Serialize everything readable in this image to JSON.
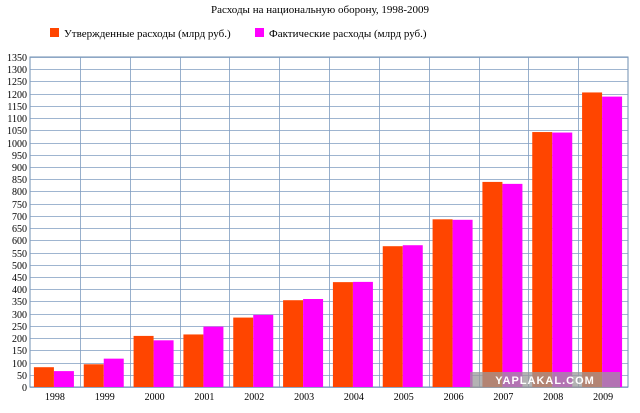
{
  "chart_data": {
    "type": "bar",
    "title": "Расходы на национальную оборону, 1998-2009",
    "categories": [
      "1998",
      "1999",
      "2000",
      "2001",
      "2002",
      "2003",
      "2004",
      "2005",
      "2006",
      "2007",
      "2008",
      "2009"
    ],
    "series": [
      {
        "name": "Утвержденные расходы (млрд руб.)",
        "color": "#ff4500",
        "values": [
          81,
          93,
          209,
          215,
          284,
          355,
          429,
          576,
          686,
          839,
          1043,
          1205
        ]
      },
      {
        "name": "Фактические расходы (млрд руб.)",
        "color": "#ff00ff",
        "values": [
          65,
          116,
          191,
          247,
          295,
          360,
          430,
          580,
          684,
          831,
          1041,
          1188
        ]
      }
    ],
    "xlabel": "",
    "ylabel": "",
    "ylim": [
      0,
      1350
    ],
    "ytick_step": 50,
    "grid": true,
    "legend": "top-left"
  },
  "watermark": "YAPLAKAL.COM"
}
